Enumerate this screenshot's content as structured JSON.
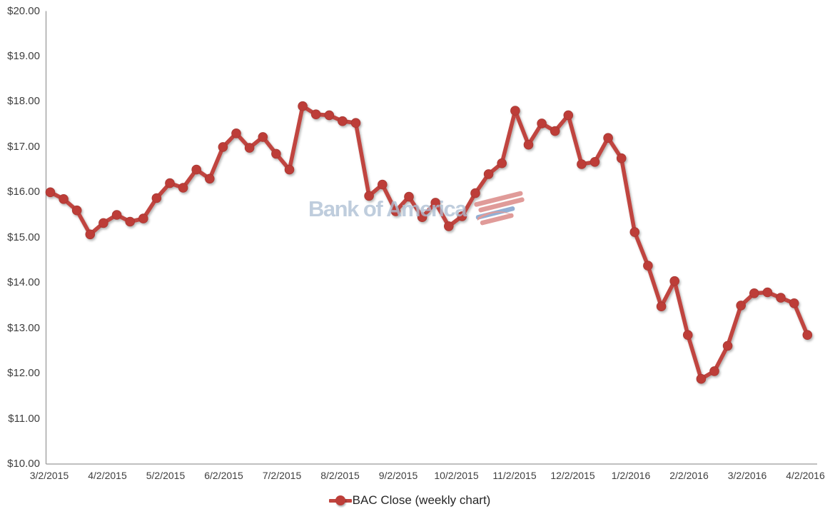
{
  "chart_data": {
    "type": "line",
    "title": "",
    "series": [
      {
        "name": "BAC Close (weekly chart)",
        "values": [
          16.0,
          15.85,
          15.6,
          15.07,
          15.32,
          15.5,
          15.35,
          15.42,
          15.87,
          16.2,
          16.1,
          16.5,
          16.3,
          17.0,
          17.3,
          16.98,
          17.22,
          16.85,
          16.5,
          17.9,
          17.72,
          17.7,
          17.57,
          17.53,
          15.92,
          16.17,
          15.58,
          15.9,
          15.45,
          15.77,
          15.25,
          15.47,
          15.98,
          16.4,
          16.64,
          17.8,
          17.05,
          17.52,
          17.35,
          17.7,
          16.62,
          16.67,
          17.2,
          16.75,
          15.12,
          14.38,
          13.48,
          14.04,
          12.85,
          11.88,
          12.05,
          12.61,
          13.5,
          13.77,
          13.79,
          13.67,
          13.55,
          12.85
        ]
      }
    ],
    "x_tick_labels": [
      "3/2/2015",
      "4/2/2015",
      "5/2/2015",
      "6/2/2015",
      "7/2/2015",
      "8/2/2015",
      "9/2/2015",
      "10/2/2015",
      "11/2/2015",
      "12/2/2015",
      "1/2/2016",
      "2/2/2016",
      "3/2/2016",
      "4/2/2016"
    ],
    "y_tick_labels": [
      "$20.00",
      "$19.00",
      "$18.00",
      "$17.00",
      "$16.00",
      "$15.00",
      "$14.00",
      "$13.00",
      "$12.00",
      "$11.00",
      "$10.00"
    ],
    "ylim": [
      10,
      20
    ],
    "y_step": 1,
    "grid": false,
    "legend_position": "bottom",
    "line_color": "#c0453f",
    "marker_color": "#bd3e39",
    "axis_color": "#9b9b9b",
    "label_color": "#3f3f3f"
  },
  "legend": {
    "label": "BAC Close (weekly chart)"
  },
  "watermark": {
    "text": "Bank of America"
  }
}
